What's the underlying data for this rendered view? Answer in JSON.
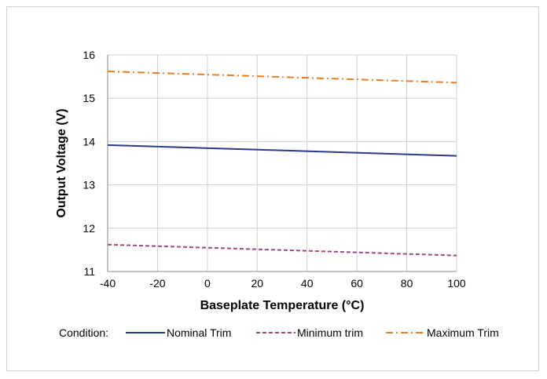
{
  "chart_data": {
    "type": "line",
    "title": "",
    "xlabel": "Baseplate Temperature (°C)",
    "ylabel": "Output Voltage (V)",
    "xlim": [
      -40,
      100
    ],
    "ylim": [
      11,
      16
    ],
    "xticks": [
      -40,
      -20,
      0,
      20,
      40,
      60,
      80,
      100
    ],
    "yticks": [
      11,
      12,
      13,
      14,
      15,
      16
    ],
    "grid": true,
    "legend_position": "bottom",
    "legend_title": "Condition:",
    "series": [
      {
        "name": "Nominal Trim",
        "color": "#2a3a8c",
        "style": "solid",
        "x": [
          -40,
          100
        ],
        "y": [
          13.92,
          13.67
        ]
      },
      {
        "name": "Minimum trim",
        "color": "#a0467a",
        "style": "dashed",
        "x": [
          -40,
          100
        ],
        "y": [
          11.62,
          11.37
        ]
      },
      {
        "name": "Maximum Trim",
        "color": "#e97c1f",
        "style": "dashdot",
        "x": [
          -40,
          100
        ],
        "y": [
          15.62,
          15.36
        ]
      }
    ]
  }
}
